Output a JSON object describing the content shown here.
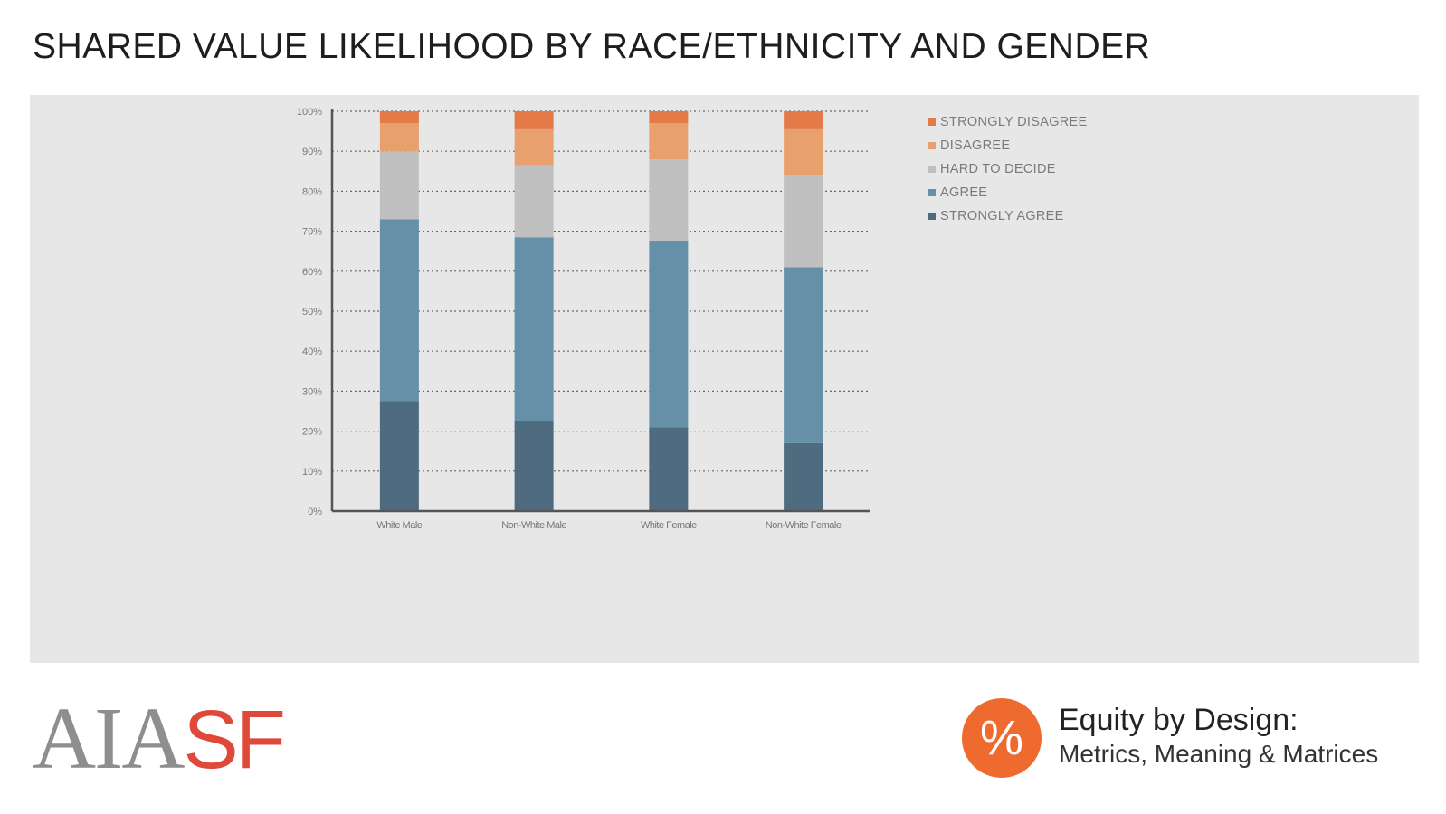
{
  "title": "SHARED VALUE LIKELIHOOD BY RACE/ETHNICITY AND GENDER",
  "chart_data": {
    "type": "bar",
    "stacked": true,
    "categories": [
      "White Male",
      "Non-White Male",
      "White Female",
      "Non-White Female"
    ],
    "ylim": [
      0,
      100
    ],
    "yticks": [
      "0%",
      "10%",
      "20%",
      "30%",
      "40%",
      "50%",
      "60%",
      "70%",
      "80%",
      "90%",
      "100%"
    ],
    "grid": true,
    "legend_position": "right",
    "series": [
      {
        "name": "STRONGLY AGREE",
        "color": "#4e6b80",
        "values": [
          27.5,
          22.5,
          21,
          17
        ]
      },
      {
        "name": "AGREE",
        "color": "#6590a8",
        "values": [
          45.5,
          46,
          46.5,
          44
        ]
      },
      {
        "name": "HARD TO DECIDE",
        "color": "#c0c0c0",
        "values": [
          17,
          18,
          20.5,
          23
        ]
      },
      {
        "name": "DISAGREE",
        "color": "#e8a06e",
        "values": [
          7,
          9,
          9,
          11.5
        ]
      },
      {
        "name": "STRONGLY DISAGREE",
        "color": "#e37a47",
        "values": [
          3,
          4.5,
          3,
          4.5
        ]
      }
    ]
  },
  "legend_order": [
    "STRONGLY DISAGREE",
    "DISAGREE",
    "HARD TO DECIDE",
    "AGREE",
    "STRONGLY AGREE"
  ],
  "footer": {
    "logo_aia": "AIA",
    "logo_sf": "SF",
    "brand_symbol": "%",
    "brand_line1": "Equity by Design:",
    "brand_line2": "Metrics, Meaning & Matrices"
  }
}
